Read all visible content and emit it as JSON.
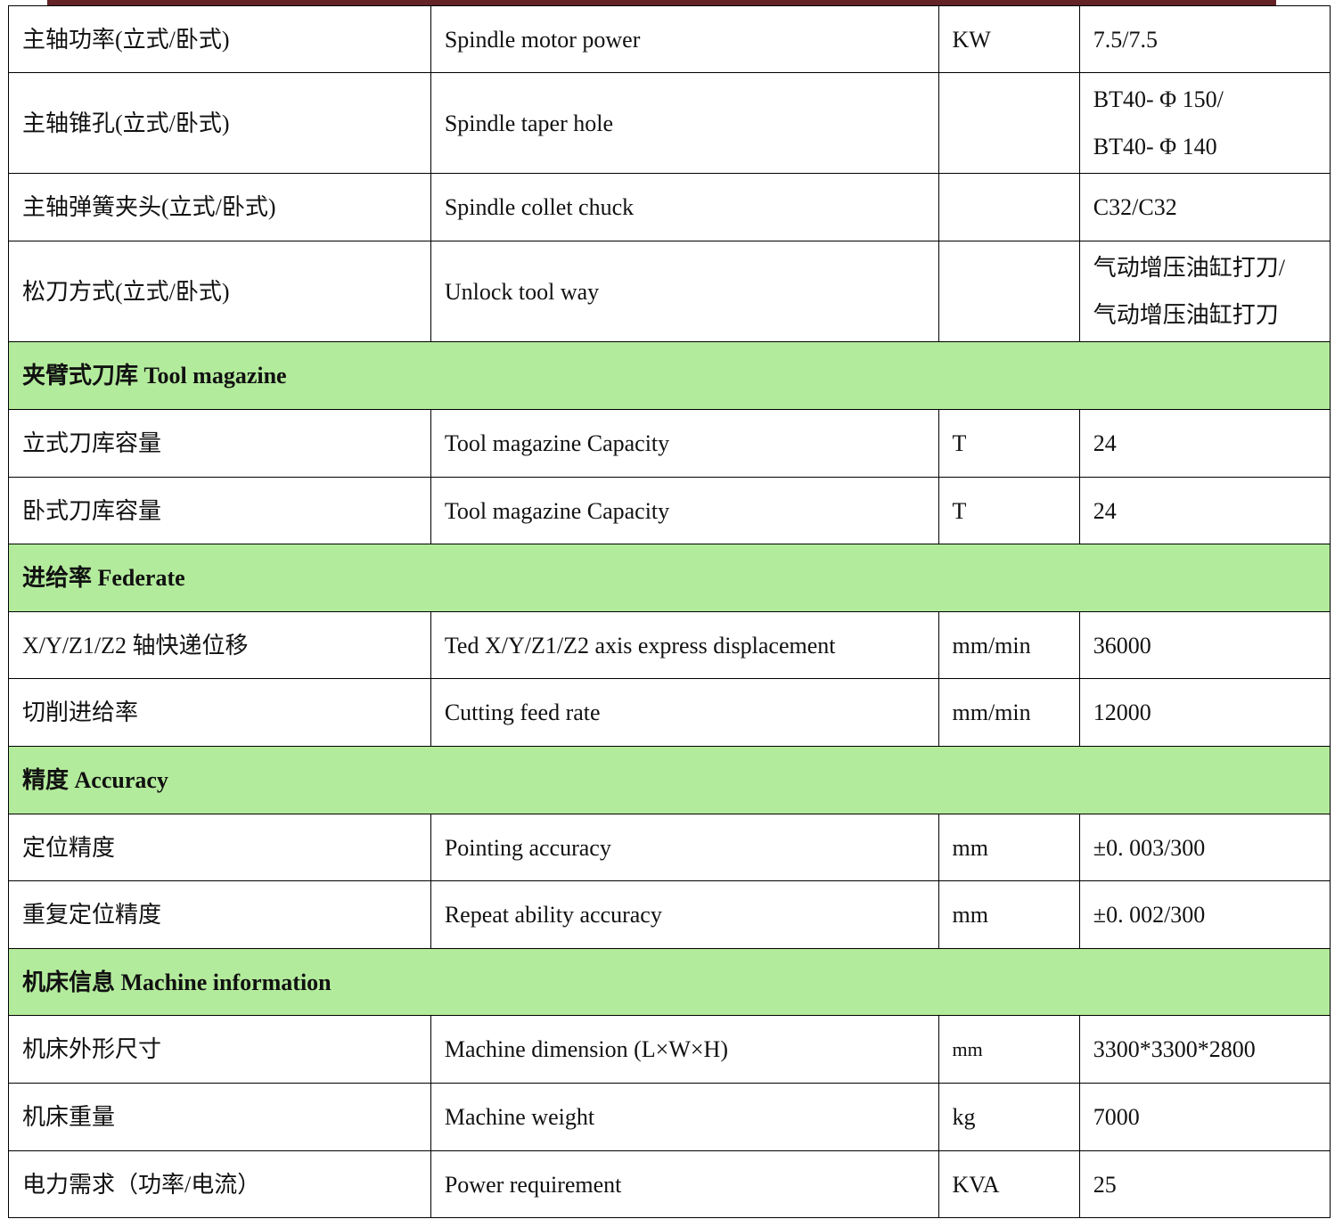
{
  "accent_color": "#632327",
  "section_color": "#b3eb9c",
  "rows": [
    {
      "type": "row",
      "cn": "主轴功率(立式/卧式)",
      "en": "Spindle motor power",
      "unit": "KW",
      "value": "7.5/7.5"
    },
    {
      "type": "row",
      "cn": "主轴锥孔(立式/卧式)",
      "en": "Spindle taper hole",
      "unit": "",
      "value": "BT40- Φ 150/",
      "value2": "BT40- Φ 140"
    },
    {
      "type": "row",
      "cn": "主轴弹簧夹头(立式/卧式)",
      "en": "Spindle collet chuck",
      "unit": "",
      "value": "C32/C32"
    },
    {
      "type": "row",
      "cn": "松刀方式(立式/卧式)",
      "en": "Unlock tool way",
      "unit": "",
      "value": "气动增压油缸打刀/",
      "value2": "气动增压油缸打刀"
    },
    {
      "type": "section",
      "title": "夹臂式刀库 Tool magazine"
    },
    {
      "type": "row",
      "cn": "立式刀库容量",
      "en": "Tool magazine Capacity",
      "unit": "T",
      "value": "24"
    },
    {
      "type": "row",
      "cn": "卧式刀库容量",
      "en": "Tool magazine Capacity",
      "unit": "T",
      "value": "24"
    },
    {
      "type": "section",
      "title": "进给率 Federate"
    },
    {
      "type": "row",
      "cn": "X/Y/Z1/Z2 轴快递位移",
      "en": "Ted X/Y/Z1/Z2 axis express displacement",
      "unit": "mm/min",
      "value": "36000"
    },
    {
      "type": "row",
      "cn": "切削进给率",
      "en": "Cutting feed rate",
      "unit": "mm/min",
      "value": "12000"
    },
    {
      "type": "section",
      "title": "精度 Accuracy"
    },
    {
      "type": "row",
      "cn": "定位精度",
      "en": "Pointing accuracy",
      "unit": "mm",
      "value": "±0. 003/300"
    },
    {
      "type": "row",
      "cn": "重复定位精度",
      "en": "Repeat ability accuracy",
      "unit": "mm",
      "value": "±0. 002/300"
    },
    {
      "type": "section",
      "title": "机床信息 Machine information"
    },
    {
      "type": "row",
      "cn": "机床外形尺寸",
      "en": "Machine dimension (L×W×H)",
      "unit": "mm",
      "value": "3300*3300*2800"
    },
    {
      "type": "row",
      "cn": "机床重量",
      "en": "Machine weight",
      "unit": "kg",
      "value": "7000"
    },
    {
      "type": "row",
      "cn": "电力需求（功率/电流）",
      "en": "Power requirement",
      "unit": "KVA",
      "value": "25"
    }
  ]
}
